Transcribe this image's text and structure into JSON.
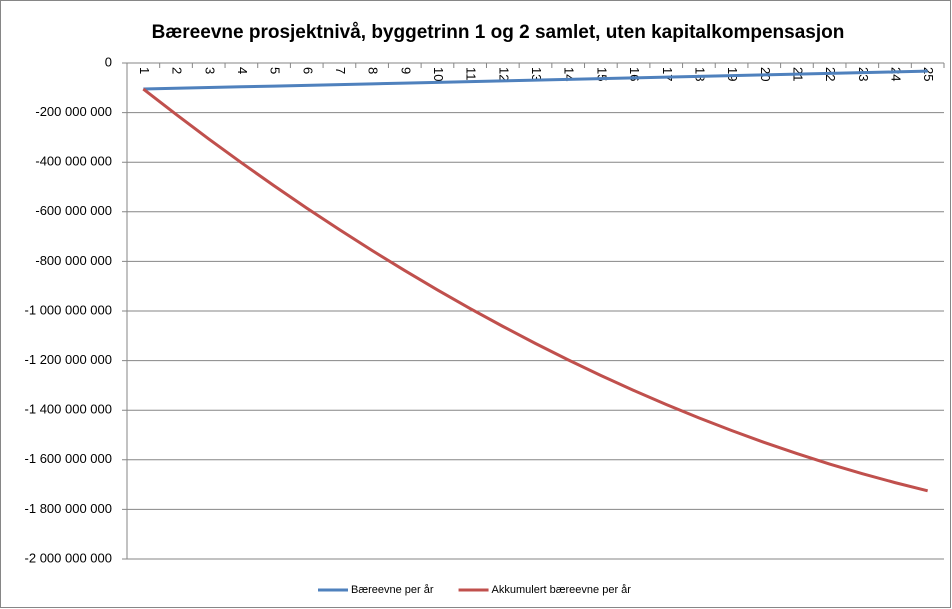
{
  "chart_data": {
    "type": "line",
    "title": "Bæreevne prosjektnivå, byggetrinn 1 og 2 samlet, uten kapitalkompensasjon",
    "categories": [
      "1",
      "2",
      "3",
      "4",
      "5",
      "6",
      "7",
      "8",
      "9",
      "10",
      "11",
      "12",
      "13",
      "14",
      "15",
      "16",
      "17",
      "18",
      "19",
      "20",
      "21",
      "22",
      "23",
      "24",
      "25"
    ],
    "series": [
      {
        "name": "Bæreevne per år",
        "color": "#4f81bd",
        "values": [
          -105000000,
          -102000000,
          -99000000,
          -96000000,
          -93000000,
          -90000000,
          -87000000,
          -84000000,
          -81000000,
          -78000000,
          -75000000,
          -72000000,
          -69000000,
          -66000000,
          -63000000,
          -60000000,
          -57000000,
          -54000000,
          -51000000,
          -48000000,
          -45000000,
          -42000000,
          -39000000,
          -36000000,
          -33000000
        ]
      },
      {
        "name": "Akkumulert bæreevne per år",
        "color": "#c0504d",
        "values": [
          -105000000,
          -207000000,
          -306000000,
          -402000000,
          -495000000,
          -585000000,
          -672000000,
          -756000000,
          -837000000,
          -915000000,
          -990000000,
          -1062000000,
          -1131000000,
          -1197000000,
          -1260000000,
          -1320000000,
          -1377000000,
          -1431000000,
          -1482000000,
          -1530000000,
          -1575000000,
          -1617000000,
          -1656000000,
          -1692000000,
          -1725000000
        ]
      }
    ],
    "ylim": [
      -2000000000,
      0
    ],
    "yticks": [
      0,
      {
        "value": -200000000,
        "label": "-200 000 000"
      },
      {
        "value": -400000000,
        "label": "-400 000 000"
      },
      {
        "value": -600000000,
        "label": "-600 000 000"
      },
      {
        "value": -800000000,
        "label": "-800 000 000"
      },
      {
        "value": -1000000000,
        "label": "-1 000 000 000"
      },
      {
        "value": -1200000000,
        "label": "-1 200 000 000"
      },
      {
        "value": -1400000000,
        "label": "-1 400 000 000"
      },
      {
        "value": -1600000000,
        "label": "-1 600 000 000"
      },
      {
        "value": -1800000000,
        "label": "-1 800 000 000"
      },
      {
        "value": -2000000000,
        "label": "-2 000 000 000"
      }
    ],
    "grid": true,
    "legend": "bottom"
  }
}
